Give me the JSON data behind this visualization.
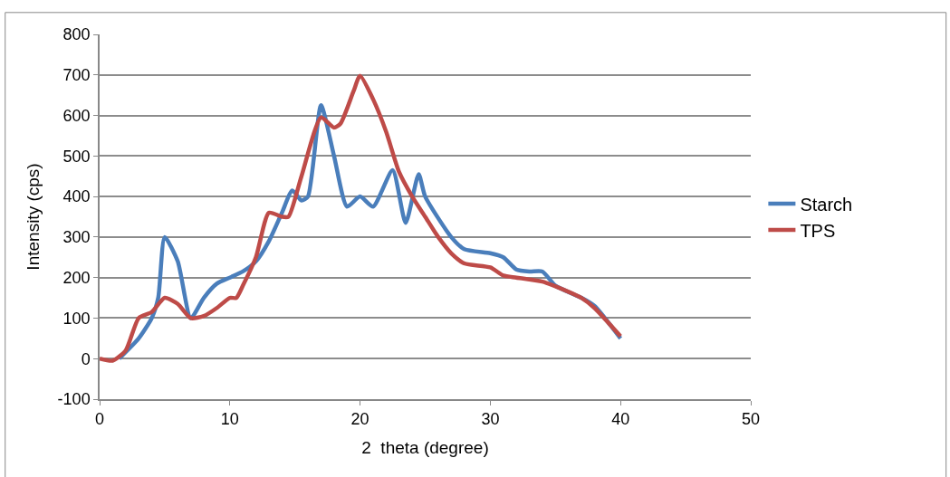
{
  "chart_data": {
    "type": "line",
    "xlabel": "2  theta (degree)",
    "ylabel": "Intensity (cps)",
    "xlim": [
      0,
      50
    ],
    "xticks": [
      0,
      10,
      20,
      30,
      40,
      50
    ],
    "ylim": [
      -100,
      800
    ],
    "yticks": [
      -100,
      0,
      100,
      200,
      300,
      400,
      500,
      600,
      700,
      800
    ],
    "grid": "y",
    "legend": "right",
    "marker": "none",
    "line_style": "solid",
    "series": [
      {
        "name": "Starch",
        "color": "#4a7ebb",
        "x": [
          1.5,
          3,
          4,
          4.5,
          5,
          6,
          7,
          8,
          9,
          10,
          11,
          12,
          13,
          14,
          14.8,
          15.5,
          16,
          17,
          18,
          19,
          20,
          21,
          22.5,
          23.5,
          24.5,
          25,
          27,
          28,
          30,
          31,
          32,
          33,
          34,
          35,
          37,
          38,
          40
        ],
        "values": [
          0,
          50,
          100,
          150,
          300,
          240,
          100,
          150,
          185,
          200,
          215,
          240,
          290,
          360,
          415,
          390,
          400,
          625,
          500,
          375,
          400,
          375,
          465,
          335,
          455,
          400,
          300,
          270,
          260,
          250,
          220,
          215,
          215,
          180,
          150,
          130,
          50
        ]
      },
      {
        "name": "TPS",
        "color": "#be4b48",
        "x": [
          0,
          1,
          2,
          3,
          4,
          5,
          6,
          7,
          8,
          9,
          10,
          10.5,
          11,
          12,
          13,
          14,
          14.5,
          15.5,
          17,
          18,
          18.5,
          19.5,
          20,
          21,
          22,
          23,
          24,
          25,
          26,
          27,
          28,
          30,
          31,
          32,
          34,
          36,
          37,
          38,
          40
        ],
        "values": [
          0,
          -5,
          20,
          100,
          115,
          150,
          135,
          100,
          105,
          125,
          150,
          150,
          180,
          250,
          360,
          350,
          350,
          450,
          595,
          570,
          580,
          660,
          698,
          640,
          560,
          460,
          400,
          350,
          300,
          260,
          235,
          225,
          205,
          200,
          190,
          165,
          150,
          125,
          55
        ]
      }
    ]
  }
}
